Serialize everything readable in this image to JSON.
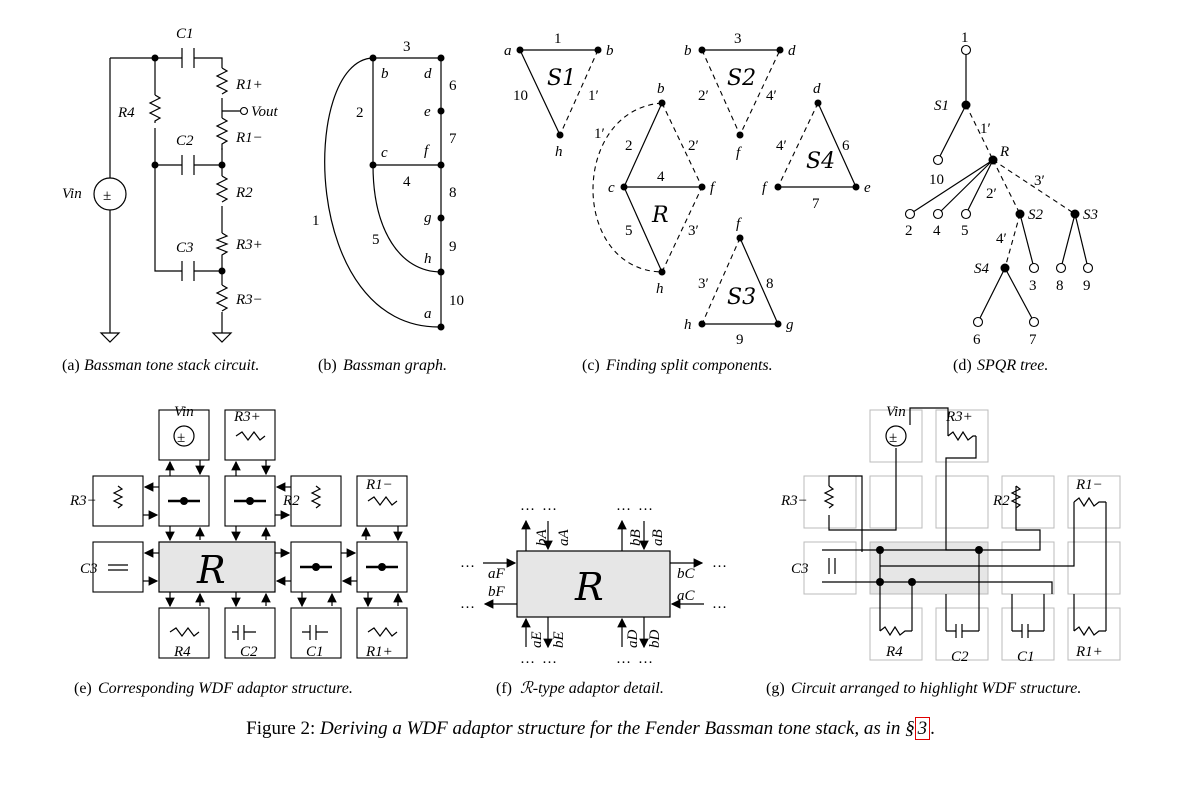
{
  "panels": {
    "a": {
      "caption_prefix": "(a)",
      "caption": "Bassman tone stack circuit.",
      "labels": {
        "C1": "C1",
        "C2": "C2",
        "C3": "C3",
        "R4": "R4",
        "R1p": "R1+",
        "R1m": "R1−",
        "R2": "R2",
        "R3p": "R3+",
        "R3m": "R3−",
        "Vout": "Vout",
        "Vin": "Vin",
        "source": "±"
      }
    },
    "b": {
      "caption_prefix": "(b)",
      "caption": "Bassman graph.",
      "nodes": [
        "b",
        "d",
        "e",
        "f",
        "c",
        "g",
        "h",
        "a"
      ],
      "edges": [
        "1",
        "2",
        "3",
        "4",
        "5",
        "6",
        "7",
        "8",
        "9",
        "10"
      ]
    },
    "c": {
      "caption_prefix": "(c)",
      "caption": "Finding split components.",
      "components": {
        "S1": "S1",
        "S2": "S2",
        "S3": "S3",
        "S4": "S4",
        "R": "R"
      },
      "edge_labels": [
        "1",
        "1′",
        "10",
        "3",
        "2′",
        "4′",
        "2",
        "2′",
        "4",
        "5",
        "3′",
        "3′",
        "8",
        "9",
        "4′",
        "6",
        "7"
      ],
      "node_labels": [
        "a",
        "b",
        "h",
        "b",
        "d",
        "f",
        "b",
        "c",
        "f",
        "h",
        "d",
        "f",
        "e",
        "f",
        "h",
        "g"
      ]
    },
    "d": {
      "caption_prefix": "(d)",
      "caption": "SPQR tree.",
      "labels": [
        "1",
        "S1",
        "1′",
        "R",
        "10",
        "3′",
        "2′",
        "S2",
        "S3",
        "2",
        "4",
        "5",
        "4′",
        "S4",
        "3",
        "8",
        "9",
        "6",
        "7"
      ]
    },
    "e": {
      "caption_prefix": "(e)",
      "caption": "Corresponding WDF adaptor structure.",
      "labels": {
        "Vin": "Vin",
        "R3p": "R3+",
        "R3m": "R3−",
        "R2": "R2",
        "R1m": "R1−",
        "C3": "C3",
        "R": "R",
        "R4": "R4",
        "C2": "C2",
        "C1": "C1",
        "R1p": "R1+"
      }
    },
    "f": {
      "caption_prefix": "(f)",
      "caption": "R-type adaptor detail.",
      "ports": [
        "bA",
        "aA",
        "bB",
        "aB",
        "aF",
        "bF",
        "bC",
        "aC",
        "aE",
        "bE",
        "aD",
        "bD"
      ],
      "dots": "…",
      "R": "R"
    },
    "g": {
      "caption_prefix": "(g)",
      "caption": "Circuit arranged to highlight WDF structure.",
      "labels": {
        "Vin": "Vin",
        "R3p": "R3+",
        "R3m": "R3−",
        "R2": "R2",
        "R1m": "R1−",
        "C3": "C3",
        "R4": "R4",
        "C2": "C2",
        "C1": "C1",
        "R1p": "R1+"
      }
    }
  },
  "figure_caption": {
    "prefix": "Figure 2:",
    "text": "Deriving a WDF adaptor structure for the Fender Bassman tone stack, as in §",
    "ref": "3",
    "suffix": "."
  }
}
